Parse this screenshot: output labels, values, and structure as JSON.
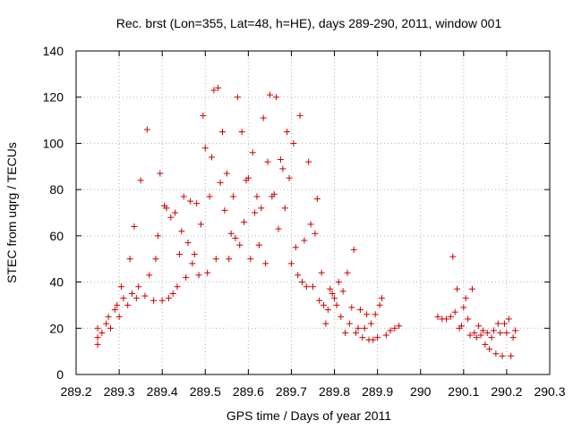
{
  "chart_data": {
    "type": "scatter",
    "title": "Rec. brst (Lon=355, Lat=48, h=HE), days 289-290, 2011, window 001",
    "xlabel": "GPS time / Days of year 2011",
    "ylabel": "STEC from uqrg / TECUs",
    "xlim": [
      289.2,
      290.3
    ],
    "ylim": [
      0,
      140
    ],
    "xticks": [
      289.2,
      289.3,
      289.4,
      289.5,
      289.6,
      289.7,
      289.8,
      289.9,
      290,
      290.1,
      290.2,
      290.3
    ],
    "xtick_labels": [
      "289.2",
      "289.3",
      "289.4",
      "289.5",
      "289.6",
      "289.7",
      "289.8",
      "289.9",
      "290",
      "290.1",
      "290.2",
      "290.3"
    ],
    "yticks": [
      0,
      20,
      40,
      60,
      80,
      100,
      120,
      140
    ],
    "ytick_labels": [
      "0",
      "20",
      "40",
      "60",
      "80",
      "100",
      "120",
      "140"
    ],
    "grid": true,
    "marker": "+",
    "color": "#cc0000",
    "series": [
      {
        "values": [
          [
            289.25,
            13
          ],
          [
            289.25,
            16
          ],
          [
            289.25,
            20
          ],
          [
            289.26,
            18
          ],
          [
            289.27,
            22
          ],
          [
            289.275,
            25
          ],
          [
            289.28,
            20
          ],
          [
            289.29,
            28
          ],
          [
            289.295,
            30
          ],
          [
            289.3,
            25
          ],
          [
            289.305,
            38
          ],
          [
            289.31,
            33
          ],
          [
            289.32,
            30
          ],
          [
            289.325,
            50
          ],
          [
            289.33,
            35
          ],
          [
            289.335,
            64
          ],
          [
            289.34,
            33
          ],
          [
            289.345,
            38
          ],
          [
            289.35,
            84
          ],
          [
            289.36,
            34
          ],
          [
            289.365,
            106
          ],
          [
            289.37,
            43
          ],
          [
            289.38,
            32
          ],
          [
            289.385,
            50
          ],
          [
            289.39,
            60
          ],
          [
            289.395,
            87
          ],
          [
            289.4,
            32
          ],
          [
            289.405,
            73
          ],
          [
            289.41,
            72
          ],
          [
            289.415,
            33
          ],
          [
            289.42,
            68
          ],
          [
            289.425,
            35
          ],
          [
            289.43,
            70
          ],
          [
            289.435,
            38
          ],
          [
            289.44,
            52
          ],
          [
            289.445,
            62
          ],
          [
            289.45,
            77
          ],
          [
            289.455,
            42
          ],
          [
            289.46,
            57
          ],
          [
            289.465,
            75
          ],
          [
            289.47,
            48
          ],
          [
            289.475,
            52
          ],
          [
            289.48,
            74
          ],
          [
            289.485,
            43
          ],
          [
            289.49,
            65
          ],
          [
            289.495,
            112
          ],
          [
            289.5,
            98
          ],
          [
            289.505,
            44
          ],
          [
            289.51,
            77
          ],
          [
            289.515,
            94
          ],
          [
            289.52,
            123
          ],
          [
            289.525,
            50
          ],
          [
            289.53,
            124
          ],
          [
            289.535,
            83
          ],
          [
            289.54,
            105
          ],
          [
            289.545,
            71
          ],
          [
            289.55,
            87
          ],
          [
            289.555,
            50
          ],
          [
            289.56,
            61
          ],
          [
            289.565,
            77
          ],
          [
            289.57,
            59
          ],
          [
            289.575,
            120
          ],
          [
            289.58,
            56
          ],
          [
            289.585,
            105
          ],
          [
            289.59,
            66
          ],
          [
            289.595,
            84
          ],
          [
            289.6,
            85
          ],
          [
            289.605,
            50
          ],
          [
            289.61,
            96
          ],
          [
            289.615,
            70
          ],
          [
            289.62,
            77
          ],
          [
            289.625,
            56
          ],
          [
            289.63,
            72
          ],
          [
            289.635,
            111
          ],
          [
            289.64,
            48
          ],
          [
            289.645,
            92
          ],
          [
            289.65,
            121
          ],
          [
            289.655,
            77
          ],
          [
            289.66,
            78
          ],
          [
            289.665,
            120
          ],
          [
            289.67,
            63
          ],
          [
            289.675,
            93
          ],
          [
            289.68,
            89
          ],
          [
            289.685,
            72
          ],
          [
            289.69,
            105
          ],
          [
            289.695,
            85
          ],
          [
            289.7,
            48
          ],
          [
            289.705,
            100
          ],
          [
            289.71,
            55
          ],
          [
            289.715,
            43
          ],
          [
            289.72,
            112
          ],
          [
            289.725,
            40
          ],
          [
            289.73,
            58
          ],
          [
            289.735,
            38
          ],
          [
            289.74,
            92
          ],
          [
            289.745,
            65
          ],
          [
            289.75,
            38
          ],
          [
            289.755,
            61
          ],
          [
            289.76,
            76
          ],
          [
            289.765,
            32
          ],
          [
            289.77,
            44
          ],
          [
            289.775,
            30
          ],
          [
            289.78,
            22
          ],
          [
            289.785,
            28
          ],
          [
            289.79,
            37
          ],
          [
            289.795,
            35
          ],
          [
            289.8,
            33
          ],
          [
            289.805,
            30
          ],
          [
            289.81,
            40
          ],
          [
            289.815,
            25
          ],
          [
            289.82,
            36
          ],
          [
            289.825,
            18
          ],
          [
            289.83,
            44
          ],
          [
            289.835,
            22
          ],
          [
            289.84,
            29
          ],
          [
            289.845,
            54
          ],
          [
            289.85,
            18
          ],
          [
            289.855,
            20
          ],
          [
            289.86,
            28
          ],
          [
            289.865,
            16
          ],
          [
            289.87,
            20
          ],
          [
            289.875,
            26
          ],
          [
            289.88,
            15
          ],
          [
            289.885,
            22
          ],
          [
            289.89,
            15
          ],
          [
            289.895,
            26
          ],
          [
            289.9,
            16
          ],
          [
            289.905,
            30
          ],
          [
            289.91,
            33
          ],
          [
            289.92,
            17
          ],
          [
            289.93,
            19
          ],
          [
            289.94,
            20
          ],
          [
            289.95,
            21
          ],
          [
            290.04,
            25
          ],
          [
            290.05,
            24
          ],
          [
            290.06,
            24
          ],
          [
            290.07,
            25
          ],
          [
            290.075,
            51
          ],
          [
            290.08,
            27
          ],
          [
            290.085,
            37
          ],
          [
            290.09,
            20
          ],
          [
            290.095,
            21
          ],
          [
            290.1,
            29
          ],
          [
            290.105,
            33
          ],
          [
            290.11,
            24
          ],
          [
            290.115,
            17
          ],
          [
            290.12,
            37
          ],
          [
            290.125,
            18
          ],
          [
            290.13,
            16
          ],
          [
            290.135,
            21
          ],
          [
            290.14,
            17
          ],
          [
            290.145,
            19
          ],
          [
            290.15,
            13
          ],
          [
            290.155,
            18
          ],
          [
            290.16,
            11
          ],
          [
            290.165,
            16
          ],
          [
            290.17,
            19
          ],
          [
            290.175,
            9
          ],
          [
            290.18,
            22
          ],
          [
            290.185,
            18
          ],
          [
            290.19,
            8
          ],
          [
            290.195,
            22
          ],
          [
            290.2,
            18
          ],
          [
            290.205,
            24
          ],
          [
            290.21,
            8
          ],
          [
            290.215,
            16
          ],
          [
            290.22,
            19
          ]
        ]
      }
    ]
  }
}
